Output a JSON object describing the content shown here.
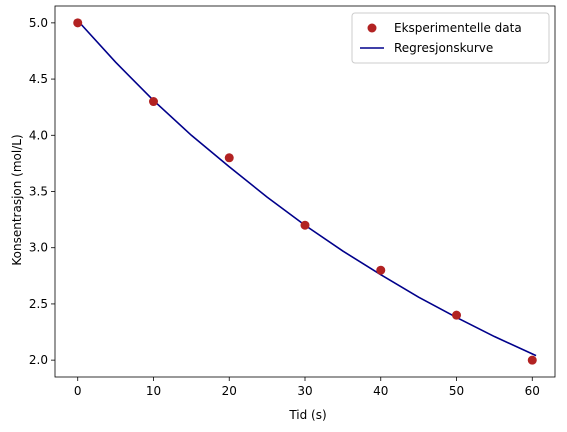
{
  "chart_data": {
    "type": "scatter",
    "xlabel": "Tid (s)",
    "ylabel": "Konsentrasjon (mol/L)",
    "xlim": [
      -3,
      63
    ],
    "ylim": [
      1.85,
      5.15
    ],
    "xticks": [
      0,
      10,
      20,
      30,
      40,
      50,
      60
    ],
    "yticks": [
      2.0,
      2.5,
      3.0,
      3.5,
      4.0,
      4.5,
      5.0
    ],
    "grid": false,
    "legend_position": "top-right",
    "series": [
      {
        "name": "Eksperimentelle data",
        "kind": "scatter",
        "color": "#b22222",
        "x": [
          0,
          10,
          20,
          30,
          40,
          50,
          60
        ],
        "y": [
          5.0,
          4.3,
          3.8,
          3.2,
          2.8,
          2.4,
          2.0
        ]
      },
      {
        "name": "Regresjonskurve",
        "kind": "line",
        "color": "#00008b",
        "x": [
          0,
          5,
          10,
          15,
          20,
          25,
          30,
          35,
          40,
          45,
          50,
          55,
          60.5
        ],
        "y": [
          5.02,
          4.65,
          4.31,
          4.0,
          3.72,
          3.45,
          3.2,
          2.97,
          2.76,
          2.56,
          2.38,
          2.21,
          2.04
        ]
      }
    ]
  }
}
